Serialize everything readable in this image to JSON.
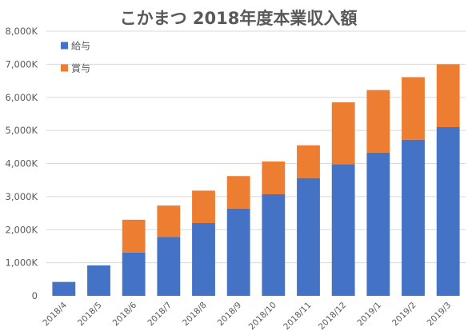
{
  "chart_data": {
    "type": "bar",
    "stacked": true,
    "title": "こかまつ 2018年度本業収入額",
    "categories": [
      "2018/4",
      "2018/5",
      "2018/6",
      "2018/7",
      "2018/8",
      "2018/9",
      "2018/10",
      "2018/11",
      "2018/12",
      "2019/1",
      "2019/2",
      "2019/3"
    ],
    "series": [
      {
        "name": "給与",
        "color": "#4472c4",
        "values": [
          420,
          920,
          1310,
          1780,
          2200,
          2640,
          3070,
          3560,
          3980,
          4330,
          4720,
          5100
        ]
      },
      {
        "name": "賞与",
        "color": "#ed7d31",
        "values": [
          0,
          0,
          990,
          950,
          980,
          980,
          990,
          990,
          1870,
          1890,
          1890,
          1900
        ]
      }
    ],
    "ylim": [
      0,
      8000
    ],
    "yticks": [
      {
        "value": 0,
        "label": "0"
      },
      {
        "value": 1000,
        "label": "1,000K"
      },
      {
        "value": 2000,
        "label": "2,000K"
      },
      {
        "value": 3000,
        "label": "3,000K"
      },
      {
        "value": 4000,
        "label": "4,000K"
      },
      {
        "value": 5000,
        "label": "5,000K"
      },
      {
        "value": 6000,
        "label": "6,000K"
      },
      {
        "value": 7000,
        "label": "7,000K"
      },
      {
        "value": 8000,
        "label": "8,000K"
      }
    ],
    "grid": true,
    "legend": "top-left"
  }
}
